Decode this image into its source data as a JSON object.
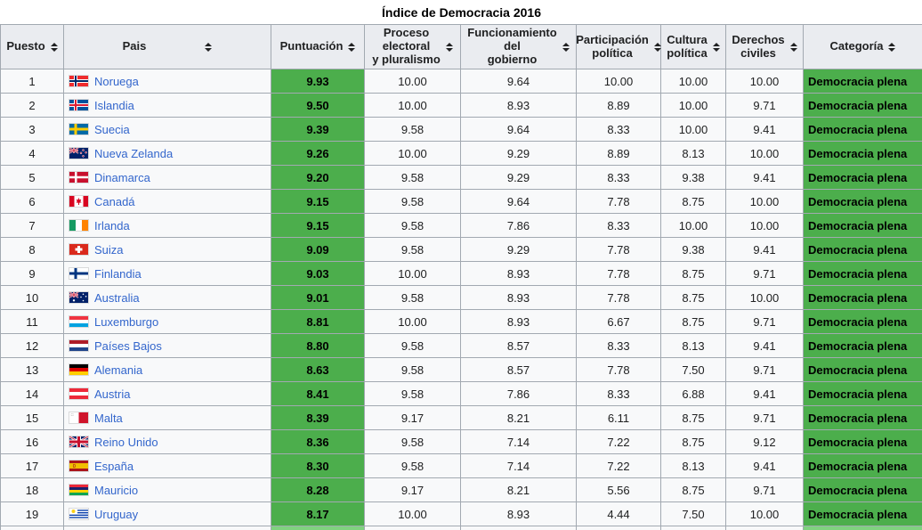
{
  "title": "Índice de Democracia 2016",
  "colors": {
    "score_green": "#4cae4c",
    "category_green": "#4cae4c",
    "next_row_light_green": "#7fd27f",
    "header_bg": "#eaecf0",
    "row_bg": "#f8f9fa",
    "border_gray": "#a2a9b1",
    "link_blue": "#3366cc"
  },
  "table": {
    "headers": [
      {
        "label": "Puesto",
        "sort_icon": "sort-icon"
      },
      {
        "label": "Pais",
        "sort_icon": "sort-icon"
      },
      {
        "label": "Puntuación",
        "sort_icon": "sort-icon"
      },
      {
        "label": "Proceso\nelectoral\ny pluralismo",
        "sort_icon": "sort-icon"
      },
      {
        "label": "Funcionamiento\ndel\ngobierno",
        "sort_icon": "sort-icon"
      },
      {
        "label": "Participación\npolítica",
        "sort_icon": "sort-icon"
      },
      {
        "label": "Cultura\npolítica",
        "sort_icon": "sort-icon"
      },
      {
        "label": "Derechos\nciviles",
        "sort_icon": "sort-icon"
      },
      {
        "label": "Categoría",
        "sort_icon": "sort-icon"
      }
    ],
    "rows": [
      {
        "rank": "1",
        "country": "Noruega",
        "flag_icon": "norway",
        "score": "9.93",
        "proceso": "10.00",
        "funcionamiento": "9.64",
        "participacion": "10.00",
        "cultura": "10.00",
        "derechos": "10.00",
        "categoria": "Democracia plena"
      },
      {
        "rank": "2",
        "country": "Islandia",
        "flag_icon": "iceland",
        "score": "9.50",
        "proceso": "10.00",
        "funcionamiento": "8.93",
        "participacion": "8.89",
        "cultura": "10.00",
        "derechos": "9.71",
        "categoria": "Democracia plena"
      },
      {
        "rank": "3",
        "country": "Suecia",
        "flag_icon": "sweden",
        "score": "9.39",
        "proceso": "9.58",
        "funcionamiento": "9.64",
        "participacion": "8.33",
        "cultura": "10.00",
        "derechos": "9.41",
        "categoria": "Democracia plena"
      },
      {
        "rank": "4",
        "country": "Nueva Zelanda",
        "flag_icon": "new-zealand",
        "score": "9.26",
        "proceso": "10.00",
        "funcionamiento": "9.29",
        "participacion": "8.89",
        "cultura": "8.13",
        "derechos": "10.00",
        "categoria": "Democracia plena"
      },
      {
        "rank": "5",
        "country": "Dinamarca",
        "flag_icon": "denmark",
        "score": "9.20",
        "proceso": "9.58",
        "funcionamiento": "9.29",
        "participacion": "8.33",
        "cultura": "9.38",
        "derechos": "9.41",
        "categoria": "Democracia plena"
      },
      {
        "rank": "6",
        "country": "Canadá",
        "flag_icon": "canada",
        "score": "9.15",
        "proceso": "9.58",
        "funcionamiento": "9.64",
        "participacion": "7.78",
        "cultura": "8.75",
        "derechos": "10.00",
        "categoria": "Democracia plena"
      },
      {
        "rank": "7",
        "country": "Irlanda",
        "flag_icon": "ireland",
        "score": "9.15",
        "proceso": "9.58",
        "funcionamiento": "7.86",
        "participacion": "8.33",
        "cultura": "10.00",
        "derechos": "10.00",
        "categoria": "Democracia plena"
      },
      {
        "rank": "8",
        "country": "Suiza",
        "flag_icon": "switzerland",
        "score": "9.09",
        "proceso": "9.58",
        "funcionamiento": "9.29",
        "participacion": "7.78",
        "cultura": "9.38",
        "derechos": "9.41",
        "categoria": "Democracia plena"
      },
      {
        "rank": "9",
        "country": "Finlandia",
        "flag_icon": "finland",
        "score": "9.03",
        "proceso": "10.00",
        "funcionamiento": "8.93",
        "participacion": "7.78",
        "cultura": "8.75",
        "derechos": "9.71",
        "categoria": "Democracia plena"
      },
      {
        "rank": "10",
        "country": "Australia",
        "flag_icon": "australia",
        "score": "9.01",
        "proceso": "9.58",
        "funcionamiento": "8.93",
        "participacion": "7.78",
        "cultura": "8.75",
        "derechos": "10.00",
        "categoria": "Democracia plena"
      },
      {
        "rank": "11",
        "country": "Luxemburgo",
        "flag_icon": "luxembourg",
        "score": "8.81",
        "proceso": "10.00",
        "funcionamiento": "8.93",
        "participacion": "6.67",
        "cultura": "8.75",
        "derechos": "9.71",
        "categoria": "Democracia plena"
      },
      {
        "rank": "12",
        "country": "Países Bajos",
        "flag_icon": "netherlands",
        "score": "8.80",
        "proceso": "9.58",
        "funcionamiento": "8.57",
        "participacion": "8.33",
        "cultura": "8.13",
        "derechos": "9.41",
        "categoria": "Democracia plena"
      },
      {
        "rank": "13",
        "country": "Alemania",
        "flag_icon": "germany",
        "score": "8.63",
        "proceso": "9.58",
        "funcionamiento": "8.57",
        "participacion": "7.78",
        "cultura": "7.50",
        "derechos": "9.71",
        "categoria": "Democracia plena"
      },
      {
        "rank": "14",
        "country": "Austria",
        "flag_icon": "austria",
        "score": "8.41",
        "proceso": "9.58",
        "funcionamiento": "7.86",
        "participacion": "8.33",
        "cultura": "6.88",
        "derechos": "9.41",
        "categoria": "Democracia plena"
      },
      {
        "rank": "15",
        "country": "Malta",
        "flag_icon": "malta",
        "score": "8.39",
        "proceso": "9.17",
        "funcionamiento": "8.21",
        "participacion": "6.11",
        "cultura": "8.75",
        "derechos": "9.71",
        "categoria": "Democracia plena"
      },
      {
        "rank": "16",
        "country": "Reino Unido",
        "flag_icon": "uk",
        "score": "8.36",
        "proceso": "9.58",
        "funcionamiento": "7.14",
        "participacion": "7.22",
        "cultura": "8.75",
        "derechos": "9.12",
        "categoria": "Democracia plena"
      },
      {
        "rank": "17",
        "country": "España",
        "flag_icon": "spain",
        "score": "8.30",
        "proceso": "9.58",
        "funcionamiento": "7.14",
        "participacion": "7.22",
        "cultura": "8.13",
        "derechos": "9.41",
        "categoria": "Democracia plena"
      },
      {
        "rank": "18",
        "country": "Mauricio",
        "flag_icon": "mauritius",
        "score": "8.28",
        "proceso": "9.17",
        "funcionamiento": "8.21",
        "participacion": "5.56",
        "cultura": "8.75",
        "derechos": "9.71",
        "categoria": "Democracia plena"
      },
      {
        "rank": "19",
        "country": "Uruguay",
        "flag_icon": "uruguay",
        "score": "8.17",
        "proceso": "10.00",
        "funcionamiento": "8.93",
        "participacion": "4.44",
        "cultura": "7.50",
        "derechos": "10.00",
        "categoria": "Democracia plena"
      }
    ],
    "partial_next_row_visible": true
  }
}
